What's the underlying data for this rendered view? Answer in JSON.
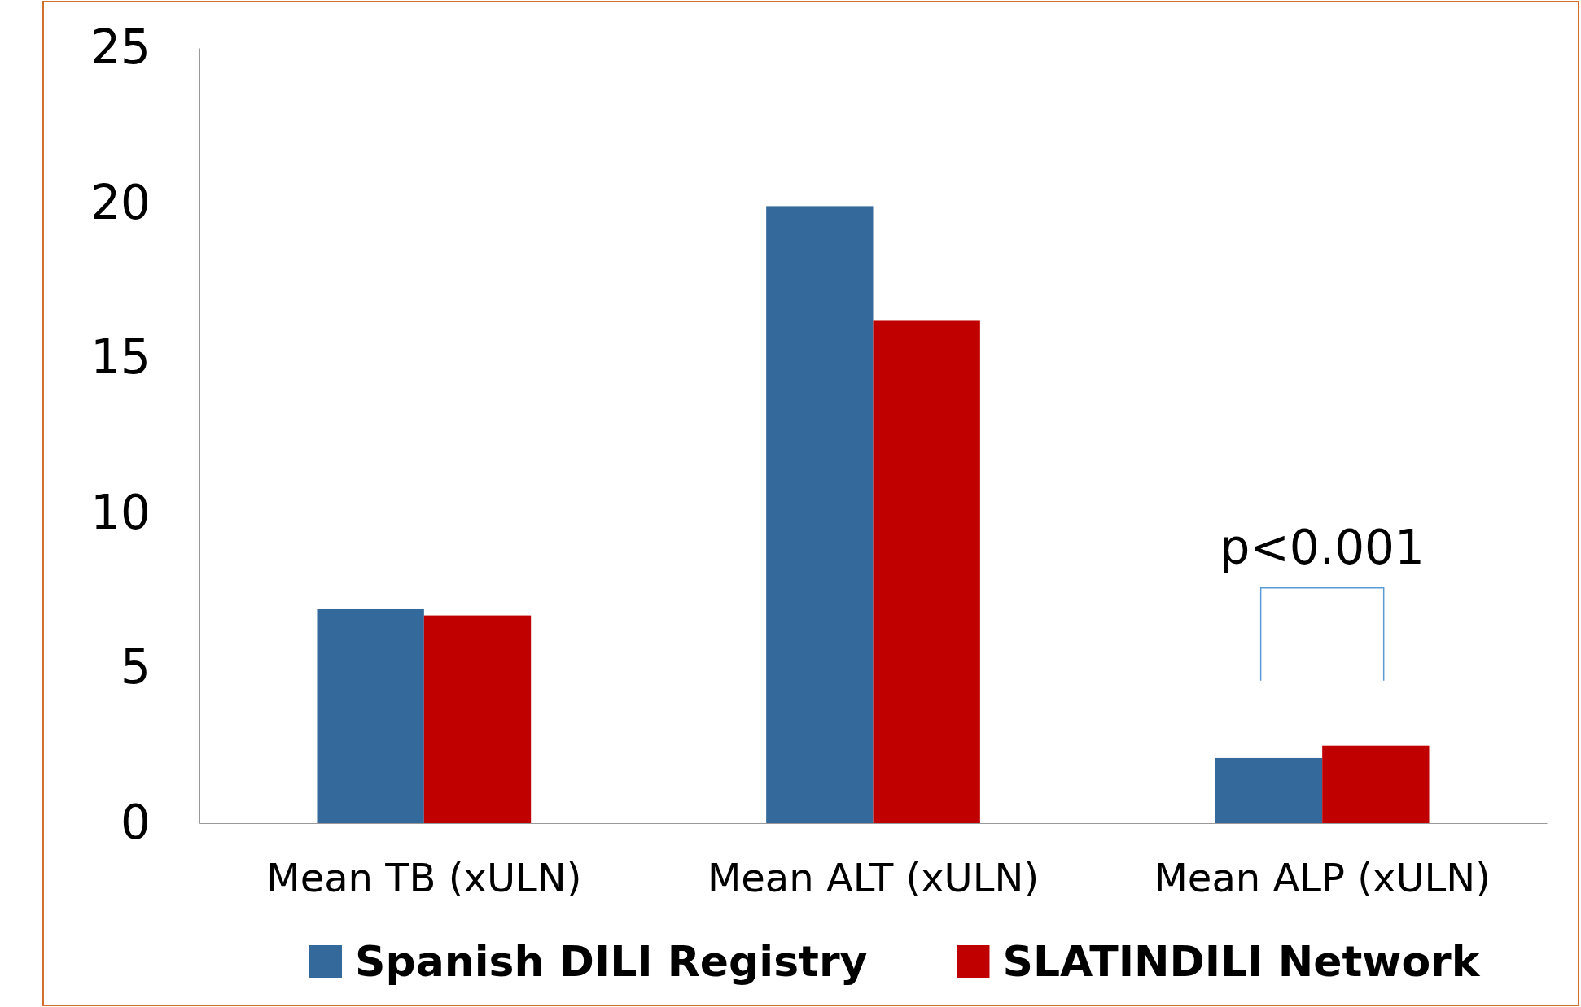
{
  "chart_data": {
    "type": "bar",
    "categories": [
      "Mean TB (xULN)",
      "Mean ALT (xULN)",
      "Mean ALP (xULN)"
    ],
    "series": [
      {
        "name": "Spanish DILI Registry",
        "color": "#346a9b",
        "values": [
          6.9,
          19.9,
          2.1
        ]
      },
      {
        "name": "SLATINDILI Network",
        "color": "#c00000",
        "values": [
          6.7,
          16.2,
          2.5
        ]
      }
    ],
    "ylim": [
      0,
      25
    ],
    "yticks": [
      0,
      5,
      10,
      15,
      20,
      25
    ],
    "grid": false,
    "legend": "bottom",
    "annotations": [
      "p<0.001"
    ]
  }
}
